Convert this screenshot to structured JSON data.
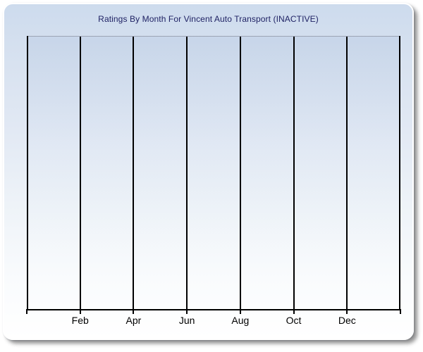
{
  "panel": {
    "title": "Ratings By Month For Vincent Auto Transport (INACTIVE)"
  },
  "chart_data": {
    "type": "line",
    "title": "Ratings By Month For Vincent Auto Transport (INACTIVE)",
    "categories": [
      "Feb",
      "Apr",
      "Jun",
      "Aug",
      "Oct",
      "Dec"
    ],
    "series": [],
    "values": [],
    "xlabel": "",
    "ylabel": "",
    "y_tick_labels": [],
    "grid": "vertical-only",
    "num_vertical_gridlines": 8,
    "unlabeled_edge_gridlines": true,
    "legend": "none",
    "notes": "Empty chart: no data points or series are plotted; only the plot frame, 8 vertical gridlines, bottom axis ticks and 6 month labels are visible."
  },
  "colors": {
    "title_text": "#1F2264",
    "axis_line": "#000000",
    "gridline": "#000000",
    "plot_top_border": "#9CA3B4",
    "panel_gradient_top": "#CDDBED",
    "panel_gradient_bottom": "#FFFFFF",
    "x_label_text": "#000000",
    "page_background": "#FFFFFF"
  }
}
